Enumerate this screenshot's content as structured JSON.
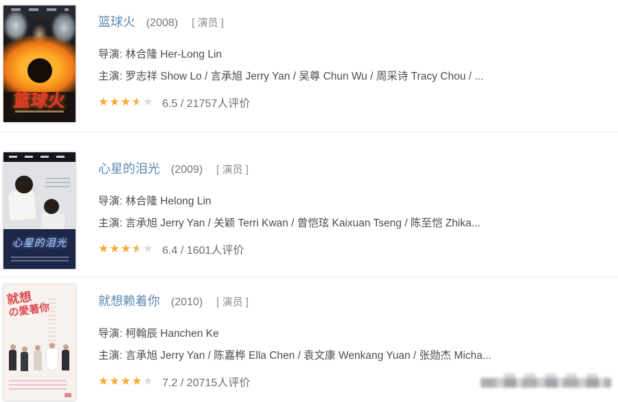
{
  "colors": {
    "link_blue": "#5b89af",
    "star_orange": "#f7ab2f",
    "star_gray": "#dcdcdc",
    "body_text": "#4c4c4c",
    "meta_gray": "#8a8a8a"
  },
  "movies": [
    {
      "title": "篮球火",
      "year": "(2008)",
      "role": "[ 演员 ]",
      "director_label": "导演:",
      "director": "林合隆 Her-Long Lin",
      "cast_label": "主演:",
      "cast": "罗志祥 Show Lo / 言承旭 Jerry Yan / 吴尊 Chun Wu / 周采诗 Tracy Chou / ...",
      "stars": 3.5,
      "rating": "6.5 / 21757人评价",
      "poster_title": "篮球火"
    },
    {
      "title": "心星的泪光",
      "year": "(2009)",
      "role": "[ 演员 ]",
      "director_label": "导演:",
      "director": "林合隆 Helong Lin",
      "cast_label": "主演:",
      "cast": "言承旭 Jerry Yan / 关颖 Terri Kwan / 曾恺玹 Kaixuan Tseng / 陈至恺 Zhika...",
      "stars": 3.5,
      "rating": "6.4 / 1601人评价",
      "poster_title": "心星的泪光"
    },
    {
      "title": "就想赖着你",
      "year": "(2010)",
      "role": "[ 演员 ]",
      "director_label": "导演:",
      "director": "柯翰辰 Hanchen Ke",
      "cast_label": "主演:",
      "cast": "言承旭 Jerry Yan / 陈嘉桦 Ella Chen / 袁文康 Wenkang Yuan / 张勋杰 Micha...",
      "stars": 4,
      "rating": "7.2 / 20715人评价",
      "poster_title_line1": "就想",
      "poster_title_line2": "の愛著你"
    }
  ]
}
